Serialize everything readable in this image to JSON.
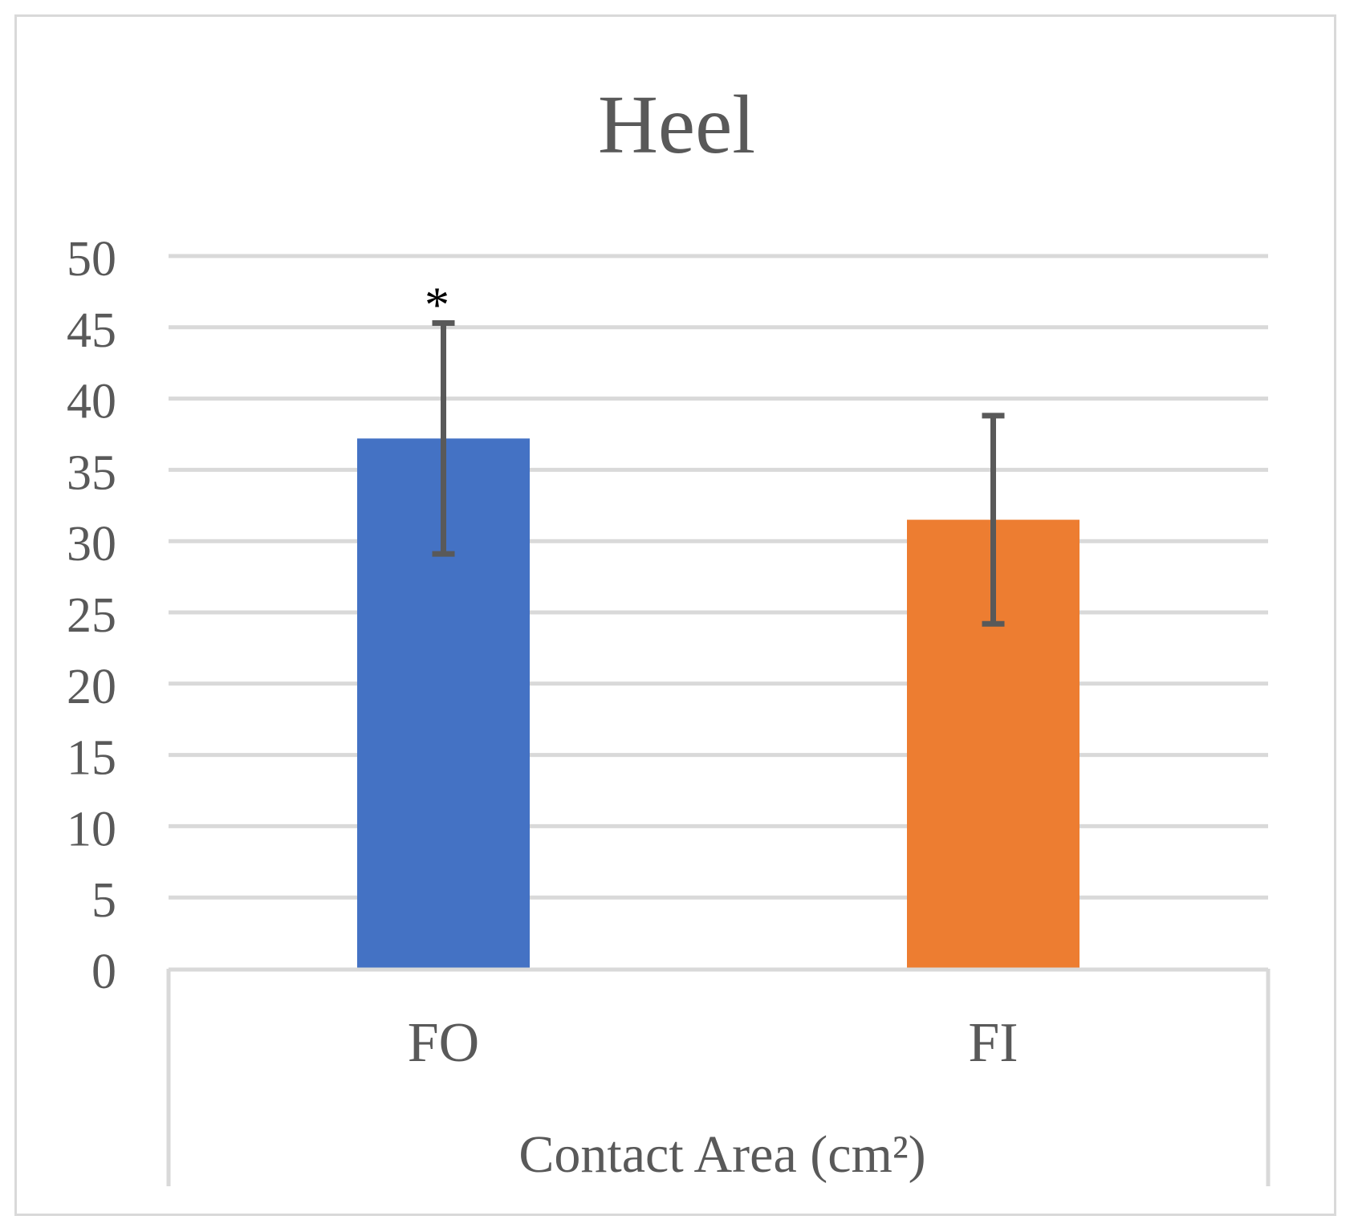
{
  "chart_data": {
    "type": "bar",
    "title": "Heel",
    "xlabel": "Contact Area (cm²)",
    "ylabel": "",
    "categories": [
      "FO",
      "FI"
    ],
    "values": [
      37.2,
      31.5
    ],
    "error": [
      8.1,
      7.3
    ],
    "annotations": [
      "*",
      ""
    ],
    "ylim": [
      0,
      50
    ],
    "yticks": [
      "0",
      "5",
      "10",
      "15",
      "20",
      "25",
      "30",
      "35",
      "40",
      "45",
      "50"
    ],
    "colors": [
      "#4472c4",
      "#ed7d31"
    ],
    "grid": true
  }
}
